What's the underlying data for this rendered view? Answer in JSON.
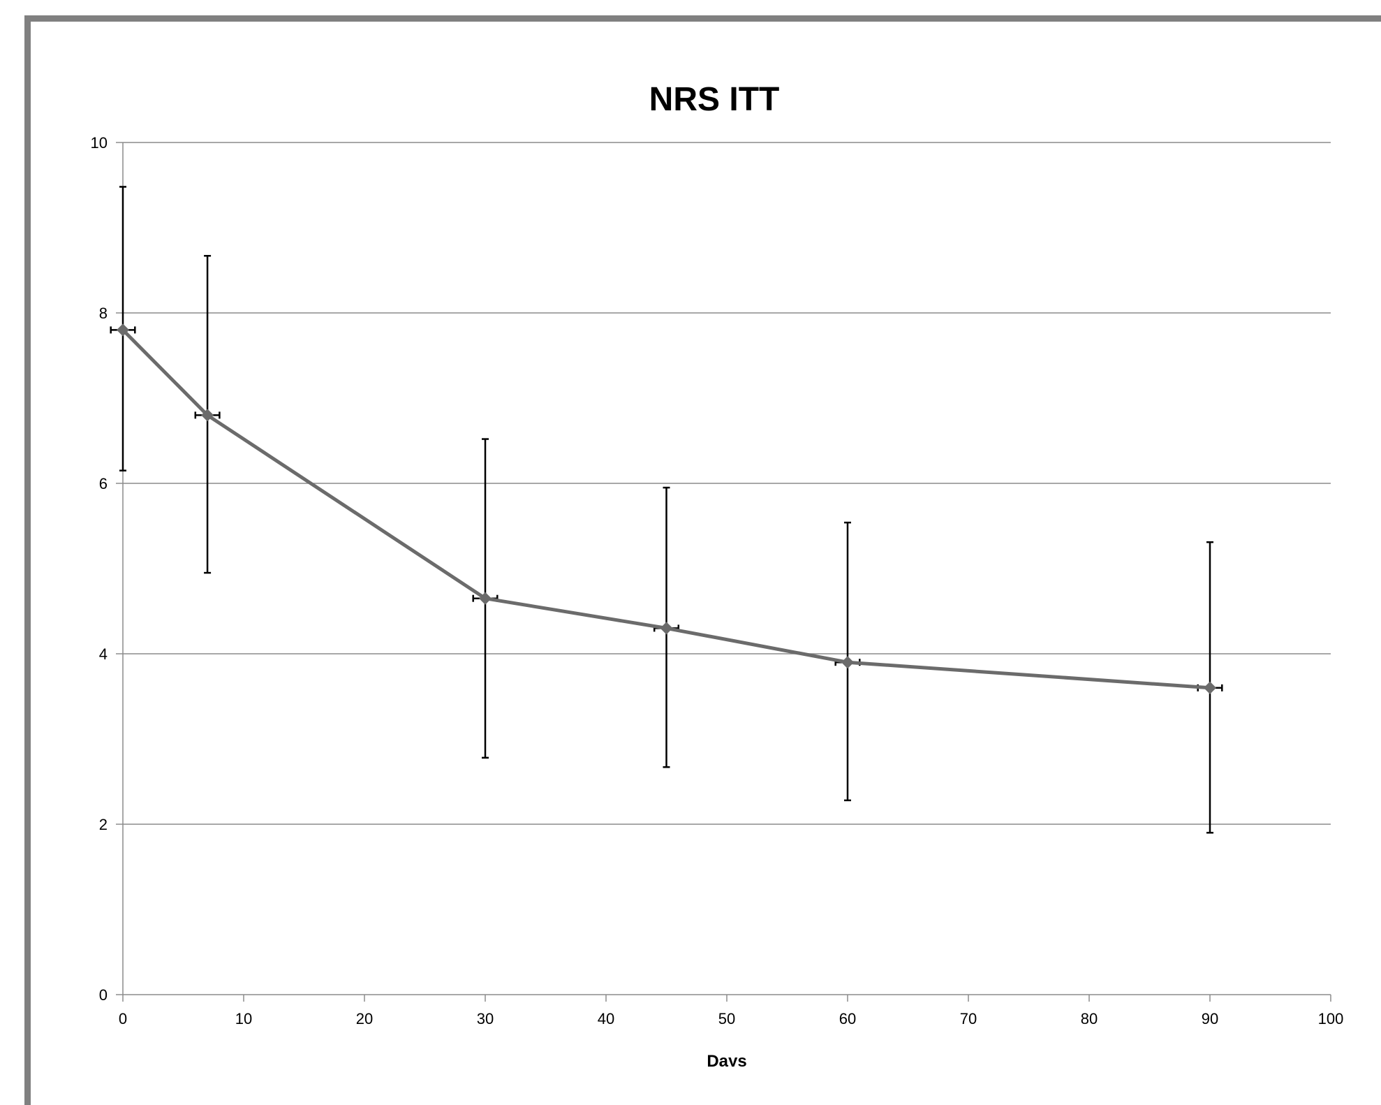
{
  "chart_data": {
    "type": "line",
    "title": "NRS  ITT",
    "xlabel": "Days",
    "ylabel": "",
    "xlim": [
      0,
      100
    ],
    "ylim": [
      0,
      10
    ],
    "x_ticks": [
      0,
      10,
      20,
      30,
      40,
      50,
      60,
      70,
      80,
      90,
      100
    ],
    "y_ticks": [
      0,
      2,
      4,
      6,
      8,
      10
    ],
    "grid": "horizontal",
    "legend": "none",
    "series": [
      {
        "color": "#6b6b6b",
        "marker": "diamond",
        "x": [
          0,
          7,
          30,
          45,
          60,
          90
        ],
        "y": [
          7.8,
          6.8,
          4.65,
          4.3,
          3.9,
          3.6
        ],
        "y_error_low": [
          6.15,
          4.95,
          2.78,
          2.67,
          2.28,
          1.9
        ],
        "y_error_high": [
          9.48,
          8.67,
          6.52,
          5.95,
          5.54,
          5.31
        ],
        "x_error": 1
      }
    ],
    "colors": {
      "frame": "#808080",
      "gridline": "#8c8c8c",
      "axis": "#8c8c8c",
      "error_bar": "#000000"
    }
  }
}
